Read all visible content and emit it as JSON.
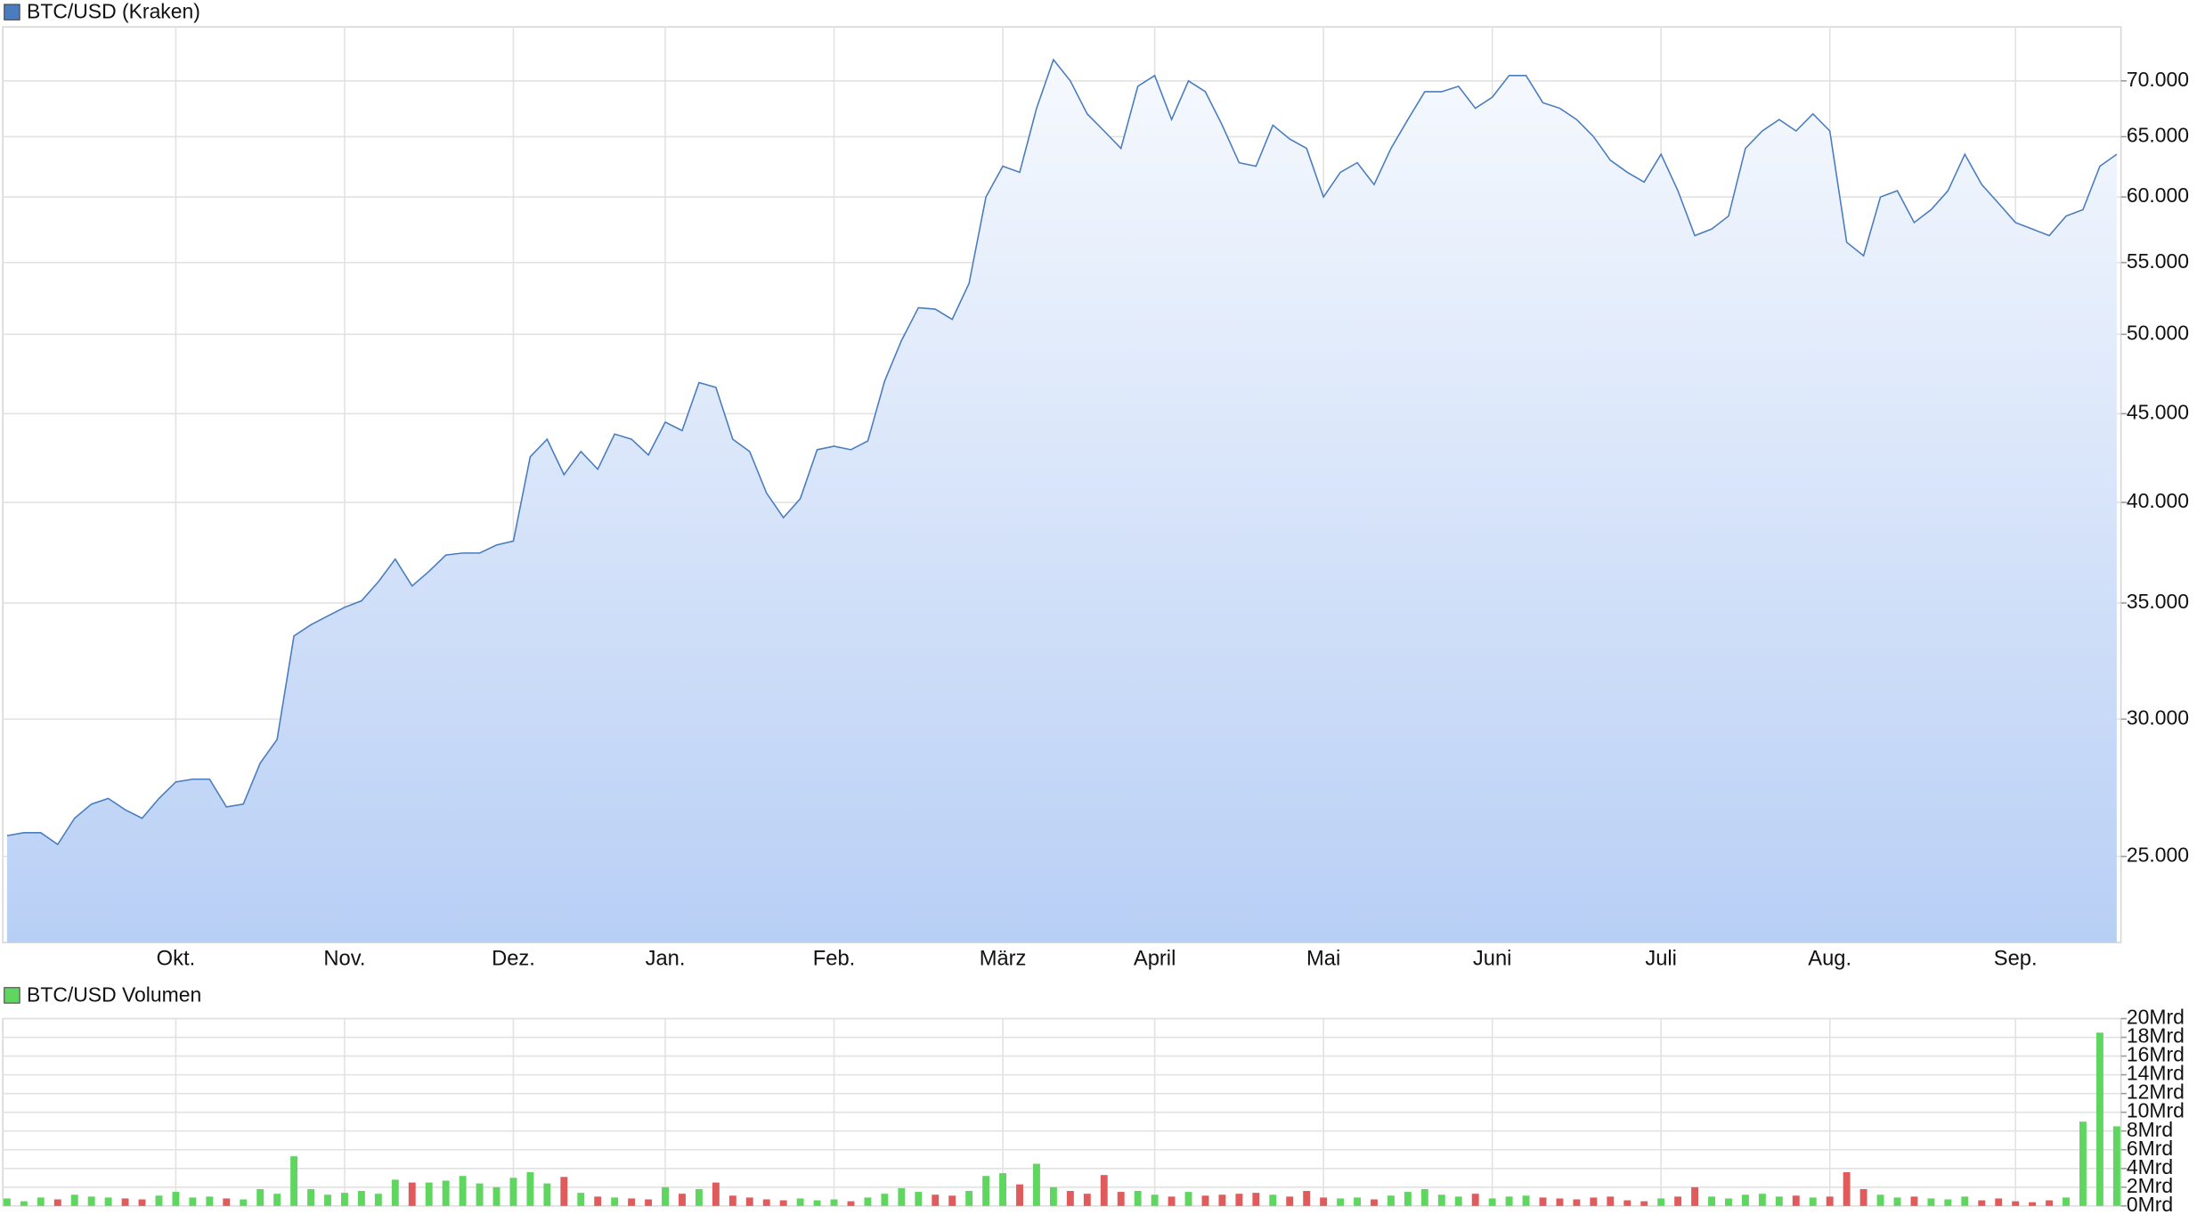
{
  "chart_data": [
    {
      "type": "area",
      "log_scale": true,
      "grid": true,
      "categories": [
        null,
        null,
        null,
        null,
        null,
        null,
        null,
        null,
        null,
        null,
        "Okt.",
        null,
        null,
        null,
        null,
        null,
        null,
        null,
        null,
        null,
        "Nov.",
        null,
        null,
        null,
        null,
        null,
        null,
        null,
        null,
        null,
        "Dez.",
        null,
        null,
        null,
        null,
        null,
        null,
        null,
        null,
        "Jan.",
        null,
        null,
        null,
        null,
        null,
        null,
        null,
        null,
        null,
        "Feb.",
        null,
        null,
        null,
        null,
        null,
        null,
        null,
        null,
        null,
        "März",
        null,
        null,
        null,
        null,
        null,
        null,
        null,
        null,
        "April",
        null,
        null,
        null,
        null,
        null,
        null,
        null,
        null,
        null,
        "Mai",
        null,
        null,
        null,
        null,
        null,
        null,
        null,
        null,
        null,
        "Juni",
        null,
        null,
        null,
        null,
        null,
        null,
        null,
        null,
        null,
        "Juli",
        null,
        null,
        null,
        null,
        null,
        null,
        null,
        null,
        null,
        "Aug.",
        null,
        null,
        null,
        null,
        null,
        null,
        null,
        null,
        null,
        null,
        "Sep.",
        null,
        null,
        null,
        null,
        null,
        null
      ],
      "series": [
        {
          "name": "BTC/USD (Kraken)",
          "color": "#4a7cc0",
          "values": [
            25700,
            25800,
            25800,
            25400,
            26300,
            26800,
            27000,
            26600,
            26300,
            27000,
            27600,
            27700,
            27700,
            26700,
            26800,
            28300,
            29200,
            33500,
            34000,
            34400,
            34800,
            35100,
            36000,
            37100,
            35800,
            36500,
            37300,
            37400,
            37400,
            37800,
            38000,
            42500,
            43500,
            41500,
            42800,
            41800,
            43800,
            43500,
            42600,
            44500,
            44000,
            46900,
            46600,
            43500,
            42800,
            40500,
            39200,
            40200,
            42900,
            43100,
            42900,
            43400,
            47000,
            49600,
            51800,
            51700,
            51000,
            53500,
            60000,
            62500,
            62000,
            67500,
            72000,
            70000,
            67000,
            65500,
            64000,
            69500,
            70500,
            66500,
            70000,
            69000,
            66000,
            62800,
            62500,
            66000,
            64800,
            64000,
            60000,
            62000,
            62800,
            61000,
            64000,
            66500,
            69000,
            69000,
            69500,
            67500,
            68500,
            70500,
            70500,
            68000,
            67500,
            66500,
            65000,
            63000,
            62000,
            61200,
            63500,
            60500,
            57000,
            57500,
            58500,
            64000,
            65500,
            66500,
            65500,
            67000,
            65500,
            56500,
            55500,
            60000,
            60500,
            58000,
            59000,
            60500,
            63500,
            61000,
            59500,
            58000,
            57500,
            57000,
            58500,
            59000,
            62500,
            63500
          ]
        }
      ],
      "ylim": [
        22300,
        75200
      ],
      "yticks": [
        {
          "value": 25000,
          "label": "25.000"
        },
        {
          "value": 30000,
          "label": "30.000"
        },
        {
          "value": 35000,
          "label": "35.000"
        },
        {
          "value": 40000,
          "label": "40.000"
        },
        {
          "value": 45000,
          "label": "45.000"
        },
        {
          "value": 50000,
          "label": "50.000"
        },
        {
          "value": 55000,
          "label": "55.000"
        },
        {
          "value": 60000,
          "label": "60.000"
        },
        {
          "value": 65000,
          "label": "65.000"
        },
        {
          "value": 70000,
          "label": "70.000"
        }
      ]
    },
    {
      "type": "bar",
      "grid": true,
      "down_color": "#e05c5c",
      "series": [
        {
          "name": "BTC/USD Volumen",
          "color": "#5fd65f",
          "values": [
            0.8,
            0.5,
            0.9,
            0.7,
            1.2,
            1.0,
            0.9,
            0.8,
            0.7,
            1.1,
            1.5,
            0.9,
            1.0,
            0.8,
            0.7,
            1.8,
            1.3,
            5.3,
            1.8,
            1.2,
            1.4,
            1.6,
            1.3,
            2.8,
            2.5,
            2.5,
            2.7,
            3.2,
            2.4,
            2.0,
            3.0,
            3.6,
            2.4,
            3.1,
            1.4,
            1.0,
            0.9,
            0.8,
            0.7,
            2.0,
            1.3,
            1.8,
            2.5,
            1.1,
            0.9,
            0.7,
            0.6,
            0.8,
            0.6,
            0.7,
            0.5,
            0.9,
            1.3,
            1.9,
            1.5,
            1.2,
            1.1,
            1.6,
            3.2,
            3.5,
            2.3,
            4.5,
            2.0,
            1.6,
            1.3,
            3.3,
            1.5,
            1.6,
            1.2,
            1.0,
            1.5,
            1.1,
            1.2,
            1.3,
            1.4,
            1.2,
            1.0,
            1.6,
            0.9,
            0.8,
            0.9,
            0.7,
            1.1,
            1.5,
            1.8,
            1.2,
            1.0,
            1.3,
            0.8,
            1.0,
            1.1,
            0.9,
            0.8,
            0.7,
            0.9,
            1.0,
            0.6,
            0.5,
            0.8,
            1.0,
            2.0,
            1.0,
            0.8,
            1.2,
            1.3,
            1.0,
            1.1,
            0.9,
            1.0,
            3.6,
            1.8,
            1.2,
            0.9,
            1.0,
            0.8,
            0.7,
            1.0,
            0.6,
            0.8,
            0.5,
            0.4,
            0.6,
            0.9,
            9.0,
            18.5,
            8.5
          ]
        }
      ],
      "ylim": [
        0,
        20
      ],
      "yticks": [
        {
          "value": 0,
          "label": "0Mrd"
        },
        {
          "value": 2,
          "label": "2Mrd"
        },
        {
          "value": 4,
          "label": "4Mrd"
        },
        {
          "value": 6,
          "label": "6Mrd"
        },
        {
          "value": 8,
          "label": "8Mrd"
        },
        {
          "value": 10,
          "label": "10Mrd"
        },
        {
          "value": 12,
          "label": "12Mrd"
        },
        {
          "value": 14,
          "label": "14Mrd"
        },
        {
          "value": 16,
          "label": "16Mrd"
        },
        {
          "value": 18,
          "label": "18Mrd"
        },
        {
          "value": 20,
          "label": "20Mrd"
        }
      ]
    }
  ]
}
